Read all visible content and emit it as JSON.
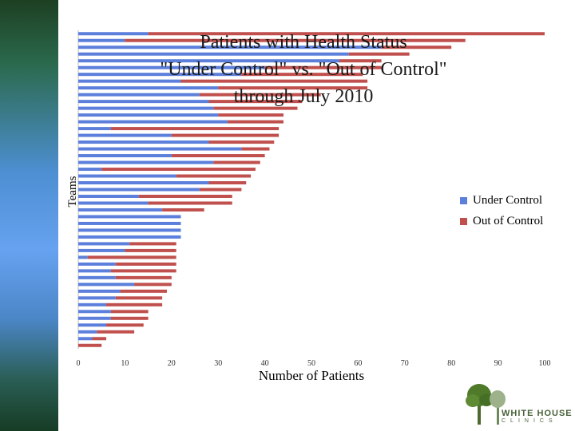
{
  "chart_data": {
    "type": "bar",
    "orientation": "horizontal",
    "stacked": true,
    "title_lines": [
      "Patients with Health Status",
      "\"Under Control\" vs. \"Out of Control\"",
      "through July 2010"
    ],
    "xlabel": "Number of Patients",
    "ylabel": "Teams",
    "xlim": [
      0,
      100
    ],
    "xticks": [
      0,
      10,
      20,
      30,
      40,
      50,
      60,
      70,
      80,
      90,
      100
    ],
    "legend_position": "right",
    "series": [
      {
        "name": "Under Control",
        "color": "#5b7fdb",
        "values": [
          15,
          10,
          65,
          58,
          56,
          40,
          35,
          22,
          30,
          26,
          28,
          29,
          30,
          32,
          7,
          20,
          28,
          35,
          20,
          29,
          5,
          21,
          28,
          26,
          13,
          15,
          18,
          22,
          22,
          22,
          22,
          11,
          10,
          2,
          8,
          7,
          8,
          12,
          9,
          8,
          6,
          7,
          7,
          6,
          4,
          3,
          0
        ]
      },
      {
        "name": "Out of Control",
        "color": "#c0504d",
        "values": [
          85,
          73,
          15,
          13,
          9,
          25,
          26,
          40,
          32,
          26,
          20,
          18,
          14,
          12,
          36,
          23,
          14,
          6,
          20,
          10,
          33,
          16,
          8,
          9,
          20,
          18,
          9,
          0,
          0,
          0,
          0,
          10,
          11,
          19,
          13,
          14,
          12,
          8,
          10,
          10,
          12,
          8,
          8,
          8,
          8,
          3,
          5
        ]
      }
    ]
  },
  "logo": {
    "name": "WHITE HOUSE",
    "sub": "CLINICS"
  }
}
